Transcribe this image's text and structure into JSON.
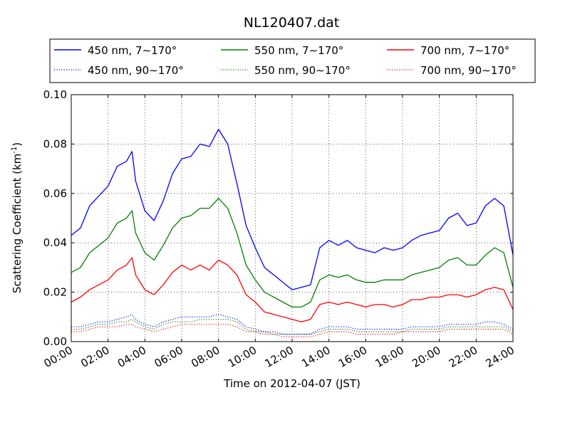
{
  "chart_data": {
    "type": "line",
    "title": "NL120407.dat",
    "xlabel": "Time on 2012-04-07 (JST)",
    "ylabel": "Scattering Coefficient (km",
    "ylabel_sup": "-1",
    "ylabel_end": ")",
    "xlim": [
      0,
      24
    ],
    "ylim": [
      0,
      0.1
    ],
    "grid": true,
    "legend_position": "top",
    "x_ticks": [
      0,
      2,
      4,
      6,
      8,
      10,
      12,
      14,
      16,
      18,
      20,
      22,
      24
    ],
    "x_tick_labels": [
      "00:00",
      "02:00",
      "04:00",
      "06:00",
      "08:00",
      "10:00",
      "12:00",
      "14:00",
      "16:00",
      "18:00",
      "20:00",
      "22:00",
      "24:00"
    ],
    "y_ticks": [
      0,
      0.02,
      0.04,
      0.06,
      0.08,
      0.1
    ],
    "y_tick_labels": [
      "0.00",
      "0.02",
      "0.04",
      "0.06",
      "0.08",
      "0.10"
    ],
    "x": [
      0.0,
      0.5,
      1.0,
      1.5,
      2.0,
      2.5,
      3.0,
      3.3,
      3.5,
      4.0,
      4.5,
      5.0,
      5.5,
      6.0,
      6.5,
      7.0,
      7.5,
      8.0,
      8.5,
      9.0,
      9.5,
      10.0,
      10.5,
      11.0,
      11.5,
      12.0,
      12.5,
      13.0,
      13.5,
      14.0,
      14.5,
      15.0,
      15.5,
      16.0,
      16.5,
      17.0,
      17.5,
      18.0,
      18.5,
      19.0,
      19.5,
      20.0,
      20.5,
      21.0,
      21.5,
      22.0,
      22.5,
      23.0,
      23.5,
      24.0
    ],
    "series": [
      {
        "name": "450 nm, 7∼170°",
        "color": "#0000ff",
        "style": "solid",
        "values": [
          0.043,
          0.046,
          0.055,
          0.059,
          0.063,
          0.071,
          0.073,
          0.077,
          0.065,
          0.053,
          0.049,
          0.057,
          0.068,
          0.074,
          0.075,
          0.08,
          0.079,
          0.086,
          0.08,
          0.064,
          0.047,
          0.038,
          0.03,
          0.027,
          0.024,
          0.021,
          0.022,
          0.023,
          0.038,
          0.041,
          0.039,
          0.041,
          0.038,
          0.037,
          0.036,
          0.038,
          0.037,
          0.038,
          0.041,
          0.043,
          0.044,
          0.045,
          0.05,
          0.052,
          0.047,
          0.048,
          0.055,
          0.058,
          0.055,
          0.035
        ]
      },
      {
        "name": "450 nm, 90∼170°",
        "color": "#0000ff",
        "style": "dotted",
        "values": [
          0.006,
          0.006,
          0.007,
          0.008,
          0.008,
          0.009,
          0.01,
          0.011,
          0.009,
          0.007,
          0.006,
          0.008,
          0.009,
          0.01,
          0.01,
          0.01,
          0.01,
          0.011,
          0.01,
          0.009,
          0.006,
          0.005,
          0.004,
          0.004,
          0.003,
          0.003,
          0.003,
          0.003,
          0.005,
          0.006,
          0.006,
          0.006,
          0.005,
          0.005,
          0.005,
          0.005,
          0.005,
          0.005,
          0.006,
          0.006,
          0.006,
          0.006,
          0.007,
          0.007,
          0.007,
          0.007,
          0.008,
          0.008,
          0.007,
          0.005
        ]
      },
      {
        "name": "550 nm, 7∼170°",
        "color": "#008000",
        "style": "solid",
        "values": [
          0.028,
          0.03,
          0.036,
          0.039,
          0.042,
          0.048,
          0.05,
          0.053,
          0.044,
          0.036,
          0.033,
          0.039,
          0.046,
          0.05,
          0.051,
          0.054,
          0.054,
          0.058,
          0.054,
          0.044,
          0.031,
          0.025,
          0.02,
          0.018,
          0.016,
          0.014,
          0.014,
          0.016,
          0.025,
          0.027,
          0.026,
          0.027,
          0.025,
          0.024,
          0.024,
          0.025,
          0.025,
          0.025,
          0.027,
          0.028,
          0.029,
          0.03,
          0.033,
          0.034,
          0.031,
          0.031,
          0.035,
          0.038,
          0.036,
          0.022
        ]
      },
      {
        "name": "550 nm, 90∼170°",
        "color": "#008000",
        "style": "dotted",
        "values": [
          0.005,
          0.005,
          0.006,
          0.007,
          0.007,
          0.008,
          0.008,
          0.009,
          0.008,
          0.006,
          0.005,
          0.007,
          0.008,
          0.008,
          0.008,
          0.009,
          0.009,
          0.009,
          0.009,
          0.008,
          0.005,
          0.004,
          0.004,
          0.003,
          0.003,
          0.003,
          0.003,
          0.003,
          0.004,
          0.005,
          0.005,
          0.005,
          0.004,
          0.004,
          0.004,
          0.004,
          0.004,
          0.004,
          0.005,
          0.005,
          0.005,
          0.005,
          0.006,
          0.006,
          0.006,
          0.006,
          0.006,
          0.006,
          0.006,
          0.004
        ]
      },
      {
        "name": "700 nm, 7∼170°",
        "color": "#ff0000",
        "style": "solid",
        "values": [
          0.016,
          0.018,
          0.021,
          0.023,
          0.025,
          0.029,
          0.031,
          0.034,
          0.027,
          0.021,
          0.019,
          0.023,
          0.028,
          0.031,
          0.029,
          0.031,
          0.029,
          0.033,
          0.031,
          0.027,
          0.019,
          0.016,
          0.012,
          0.011,
          0.01,
          0.009,
          0.008,
          0.009,
          0.015,
          0.016,
          0.015,
          0.016,
          0.015,
          0.014,
          0.015,
          0.015,
          0.014,
          0.015,
          0.017,
          0.017,
          0.018,
          0.018,
          0.019,
          0.019,
          0.018,
          0.019,
          0.021,
          0.022,
          0.021,
          0.013
        ]
      },
      {
        "name": "700 nm, 90∼170°",
        "color": "#ff0000",
        "style": "dotted",
        "values": [
          0.004,
          0.004,
          0.005,
          0.006,
          0.006,
          0.006,
          0.007,
          0.007,
          0.006,
          0.005,
          0.004,
          0.005,
          0.006,
          0.007,
          0.007,
          0.007,
          0.007,
          0.007,
          0.007,
          0.006,
          0.004,
          0.004,
          0.003,
          0.003,
          0.002,
          0.002,
          0.002,
          0.002,
          0.003,
          0.004,
          0.004,
          0.004,
          0.003,
          0.003,
          0.003,
          0.003,
          0.003,
          0.004,
          0.004,
          0.004,
          0.004,
          0.004,
          0.005,
          0.005,
          0.005,
          0.005,
          0.005,
          0.005,
          0.005,
          0.003
        ]
      }
    ]
  }
}
